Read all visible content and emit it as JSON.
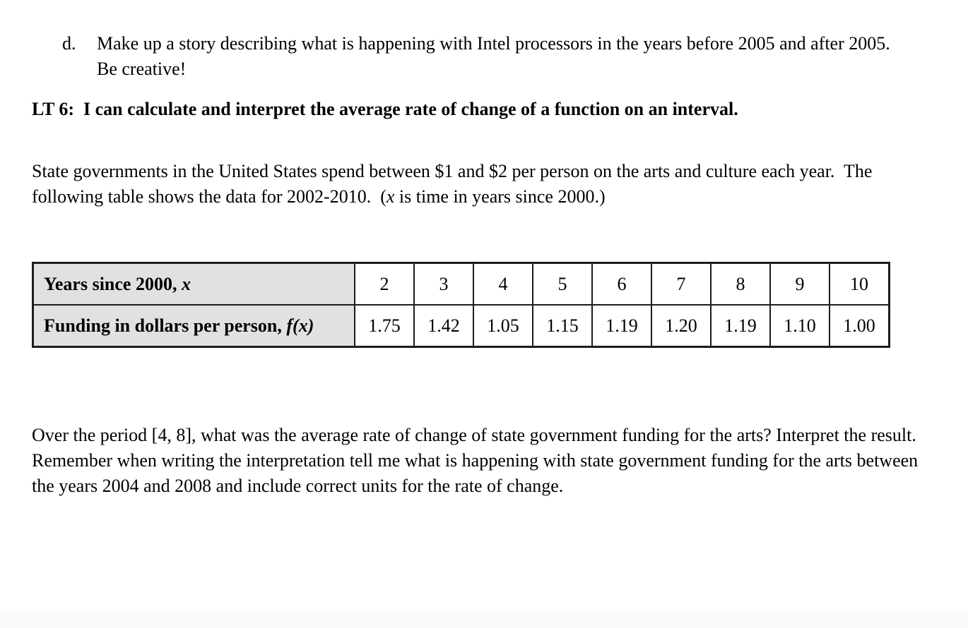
{
  "document": {
    "list_item_d": {
      "marker": "d.",
      "text": "Make up a story describing what is happening with Intel processors in the years before 2005 and after 2005. Be creative!"
    },
    "learning_target_heading": "LT 6:  I can calculate and interpret the average rate of change of a function on an interval.",
    "intro": {
      "before_x": "State governments in the United States spend between $1 and $2 per person on the arts and culture each year.  The following table shows the data for 2002-2010.  (",
      "x_var": "x",
      "after_x": " is time in years since 2000.)"
    },
    "table": {
      "rows": [
        {
          "label_text": "Years since 2000, ",
          "label_var": "x",
          "values": [
            "2",
            "3",
            "4",
            "5",
            "6",
            "7",
            "8",
            "9",
            "10"
          ]
        },
        {
          "label_text": "Funding in dollars per person, ",
          "label_var": "f(x)",
          "values": [
            "1.75",
            "1.42",
            "1.05",
            "1.15",
            "1.19",
            "1.20",
            "1.19",
            "1.10",
            "1.00"
          ]
        }
      ]
    },
    "question": "Over the period [4, 8], what was the average rate of change of state government funding for the arts? Interpret the result. Remember when writing the interpretation tell me what is happening with state government funding for the arts between the years 2004 and 2008 and include correct units for the rate of change."
  }
}
